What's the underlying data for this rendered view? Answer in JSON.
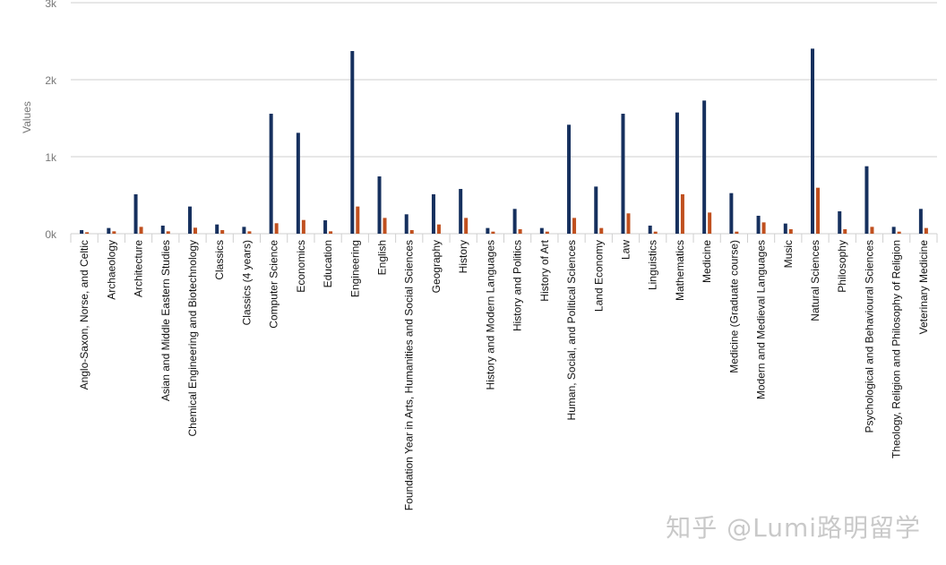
{
  "chart_data": {
    "type": "bar",
    "title": "",
    "xlabel": "",
    "ylabel": "Values",
    "ylim": [
      0,
      3000
    ],
    "yticks": [
      "0k",
      "1k",
      "2k",
      "3k"
    ],
    "grid": true,
    "legend": "none",
    "colors": [
      "#16305e",
      "#c0501f"
    ],
    "categories": [
      "Anglo-Saxon, Norse, and Celtic",
      "Archaeology",
      "Architecture",
      "Asian and Middle Eastern Studies",
      "Chemical Engineering and Biotechnology",
      "Classics",
      "Classics (4 years)",
      "Computer Science",
      "Economics",
      "Education",
      "Engineering",
      "English",
      "Foundation Year in Arts, Humanities and Social Sciences",
      "Geography",
      "History",
      "History and Modern Languages",
      "History and Politics",
      "History of Art",
      "Human, Social, and Political Sciences",
      "Land Economy",
      "Law",
      "Linguistics",
      "Mathematics",
      "Medicine",
      "Medicine (Graduate course)",
      "Modern and Medieval Languages",
      "Music",
      "Natural Sciences",
      "Philosophy",
      "Psychological and Behavioural Sciences",
      "Theology, Religion and Philosophy of Religion",
      "Veterinary Medicine"
    ],
    "series": [
      {
        "values": [
          47,
          74,
          512,
          105,
          353,
          120,
          89,
          1558,
          1310,
          174,
          2372,
          744,
          252,
          512,
          581,
          74,
          322,
          74,
          1415,
          612,
          1558,
          105,
          1574,
          1729,
          527,
          233,
          132,
          2403,
          291,
          876,
          89,
          322
        ]
      },
      {
        "values": [
          19,
          31,
          89,
          31,
          78,
          47,
          31,
          136,
          178,
          31,
          353,
          205,
          47,
          120,
          205,
          27,
          58,
          27,
          205,
          74,
          264,
          27,
          512,
          275,
          27,
          147,
          58,
          597,
          58,
          89,
          27,
          74
        ]
      }
    ]
  },
  "watermark": "知乎 @Lumi路明留学"
}
